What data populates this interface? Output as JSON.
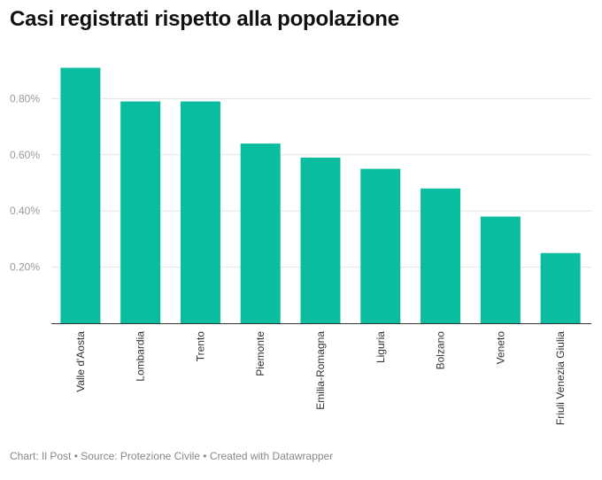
{
  "chart_data": {
    "type": "bar",
    "title": "Casi registrati rispetto alla popolazione",
    "categories": [
      "Valle d'Aosta",
      "Lombardia",
      "Trento",
      "Piemonte",
      "Emilia-Romagna",
      "Liguria",
      "Bolzano",
      "Veneto",
      "Friuli Venezia Giulia"
    ],
    "values": [
      0.91,
      0.79,
      0.79,
      0.64,
      0.59,
      0.55,
      0.48,
      0.38,
      0.25
    ],
    "ylim": [
      0,
      1.0
    ],
    "yticks": [
      0.2,
      0.4,
      0.6,
      0.8
    ],
    "ytick_labels": [
      "0.20%",
      "0.40%",
      "0.60%",
      "0.80%"
    ],
    "xlabel": "",
    "ylabel": "",
    "grid": true,
    "bar_color": "#0abd9e"
  },
  "footer": "Chart: Il Post • Source: Protezione Civile • Created with Datawrapper"
}
